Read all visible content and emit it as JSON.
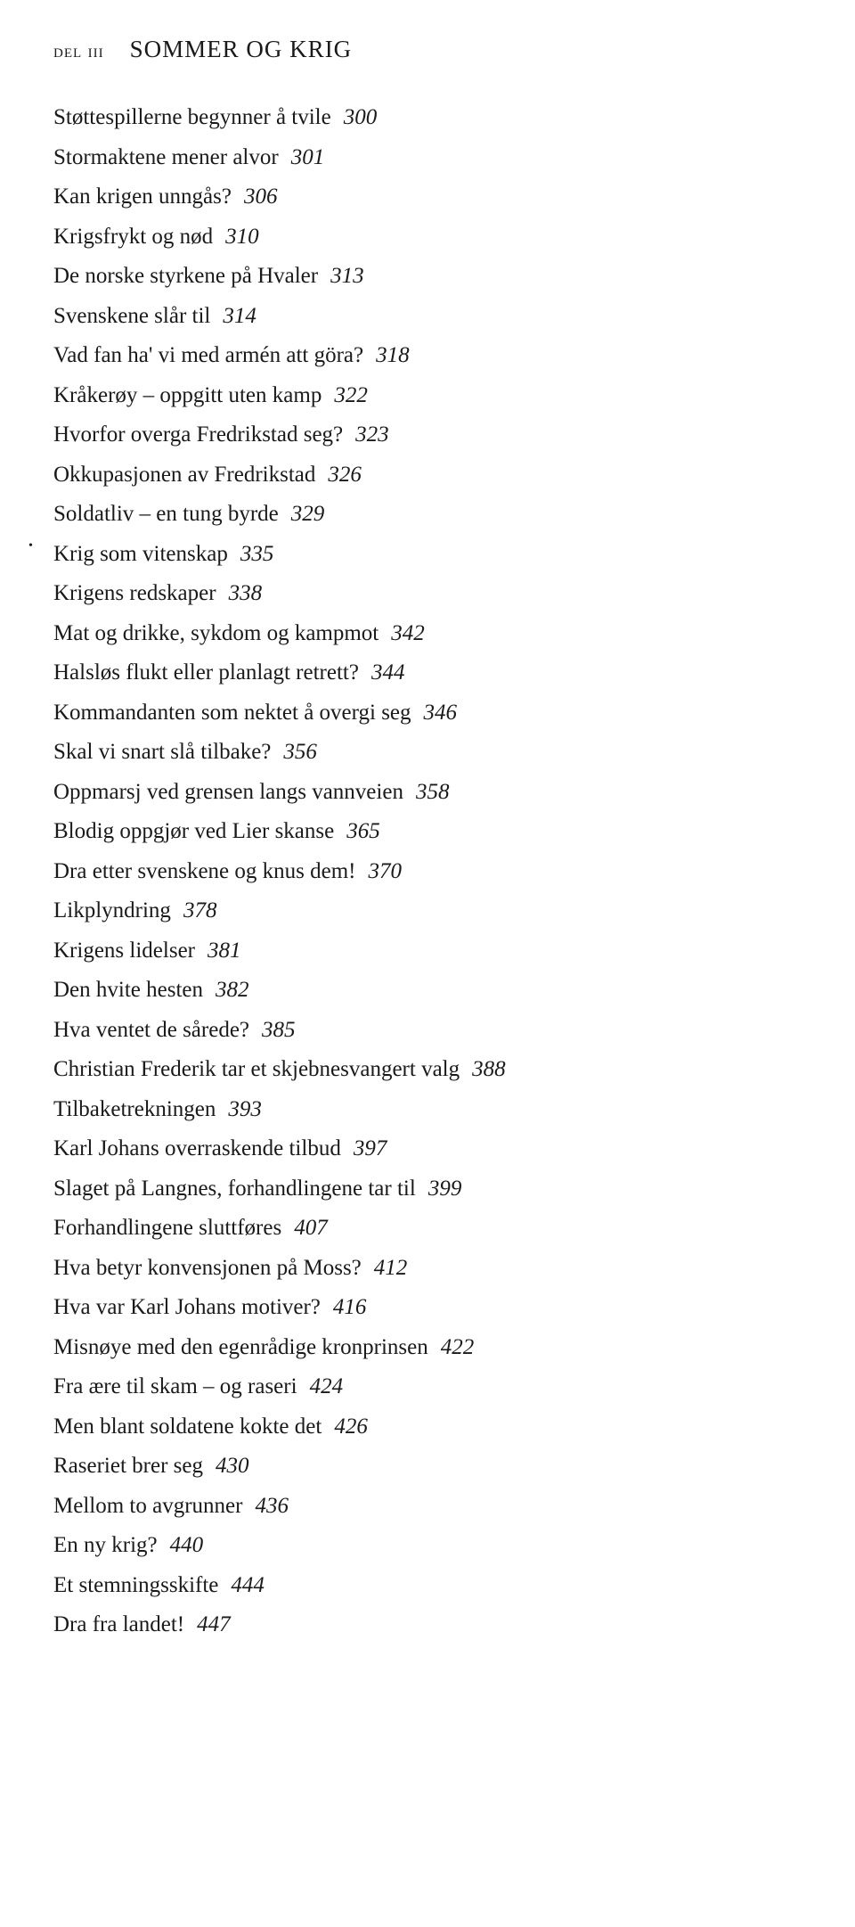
{
  "heading": {
    "part_label": "del iii",
    "title": "SOMMER OG KRIG"
  },
  "entries": [
    {
      "title": "Støttespillerne begynner å tvile",
      "page": "300"
    },
    {
      "title": "Stormaktene mener alvor",
      "page": "301"
    },
    {
      "title": "Kan krigen unngås?",
      "page": "306"
    },
    {
      "title": "Krigsfrykt og nød",
      "page": "310"
    },
    {
      "title": "De norske styrkene på Hvaler",
      "page": "313"
    },
    {
      "title": "Svenskene slår til",
      "page": "314"
    },
    {
      "title": "Vad fan ha' vi med armén att göra?",
      "page": "318"
    },
    {
      "title": "Kråkerøy – oppgitt uten kamp",
      "page": "322"
    },
    {
      "title": "Hvorfor overga Fredrikstad seg?",
      "page": "323"
    },
    {
      "title": "Okkupasjonen av Fredrikstad",
      "page": "326"
    },
    {
      "title": "Soldatliv – en tung byrde",
      "page": "329"
    },
    {
      "title": "Krig som vitenskap",
      "page": "335",
      "bullet": true
    },
    {
      "title": "Krigens redskaper",
      "page": "338"
    },
    {
      "title": "Mat og drikke, sykdom og kampmot",
      "page": "342"
    },
    {
      "title": "Halsløs flukt eller planlagt retrett?",
      "page": "344"
    },
    {
      "title": "Kommandanten som nektet å overgi seg",
      "page": "346"
    },
    {
      "title": "Skal vi snart slå tilbake?",
      "page": "356"
    },
    {
      "title": "Oppmarsj ved grensen langs vannveien",
      "page": "358"
    },
    {
      "title": "Blodig oppgjør ved Lier skanse",
      "page": "365"
    },
    {
      "title": "Dra etter svenskene og knus dem!",
      "page": "370"
    },
    {
      "title": "Likplyndring",
      "page": "378"
    },
    {
      "title": "Krigens lidelser",
      "page": "381"
    },
    {
      "title": "Den hvite hesten",
      "page": "382"
    },
    {
      "title": "Hva ventet de sårede?",
      "page": "385"
    },
    {
      "title": "Christian Frederik tar et skjebnesvangert valg",
      "page": "388"
    },
    {
      "title": "Tilbaketrekningen",
      "page": "393"
    },
    {
      "title": "Karl Johans overraskende tilbud",
      "page": "397"
    },
    {
      "title": "Slaget på Langnes, forhandlingene tar til",
      "page": "399"
    },
    {
      "title": "Forhandlingene sluttføres",
      "page": "407"
    },
    {
      "title": "Hva betyr konvensjonen på Moss?",
      "page": "412"
    },
    {
      "title": "Hva var Karl Johans motiver?",
      "page": "416"
    },
    {
      "title": "Misnøye med den egenrådige kronprinsen",
      "page": "422"
    },
    {
      "title": "Fra ære til skam – og raseri",
      "page": "424"
    },
    {
      "title": "Men blant soldatene kokte det",
      "page": "426"
    },
    {
      "title": "Raseriet brer seg",
      "page": "430"
    },
    {
      "title": "Mellom to avgrunner",
      "page": "436"
    },
    {
      "title": "En ny krig?",
      "page": "440"
    },
    {
      "title": "Et stemningsskifte",
      "page": "444"
    },
    {
      "title": "Dra fra landet!",
      "page": "447"
    }
  ]
}
